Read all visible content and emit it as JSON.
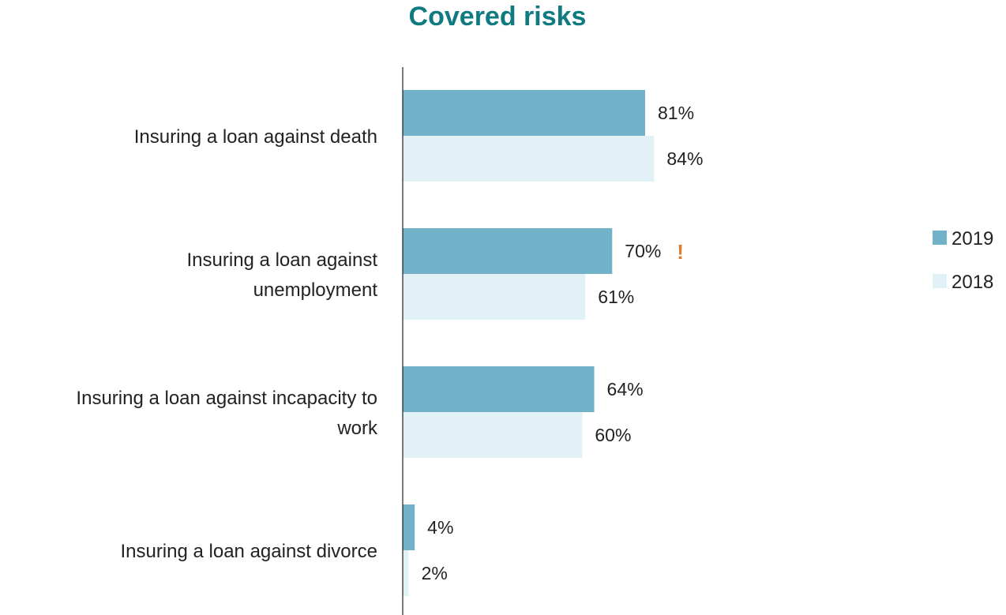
{
  "chart_data": {
    "type": "bar",
    "orientation": "horizontal",
    "title": "Covered risks",
    "categories": [
      [
        "Insuring a loan against death"
      ],
      [
        "Insuring a loan against",
        "unemployment"
      ],
      [
        "Insuring a loan against incapacity to",
        "work"
      ],
      [
        "Insuring a loan against divorce"
      ]
    ],
    "series": [
      {
        "name": "2019",
        "color": "#72b2c9",
        "values": [
          81,
          70,
          64,
          4
        ],
        "labels": [
          "81%",
          "70%",
          "64%",
          "4%"
        ]
      },
      {
        "name": "2018",
        "color": "#e2f1f5",
        "values": [
          84,
          61,
          60,
          2
        ],
        "labels": [
          "84%",
          "61%",
          "60%",
          "2%"
        ]
      }
    ],
    "annotations": [
      {
        "category_index": 1,
        "series_index": 0,
        "text": "!",
        "color": "#e07b2e"
      }
    ],
    "xlim": [
      0,
      100
    ],
    "grid": false,
    "legend_position": "right"
  }
}
